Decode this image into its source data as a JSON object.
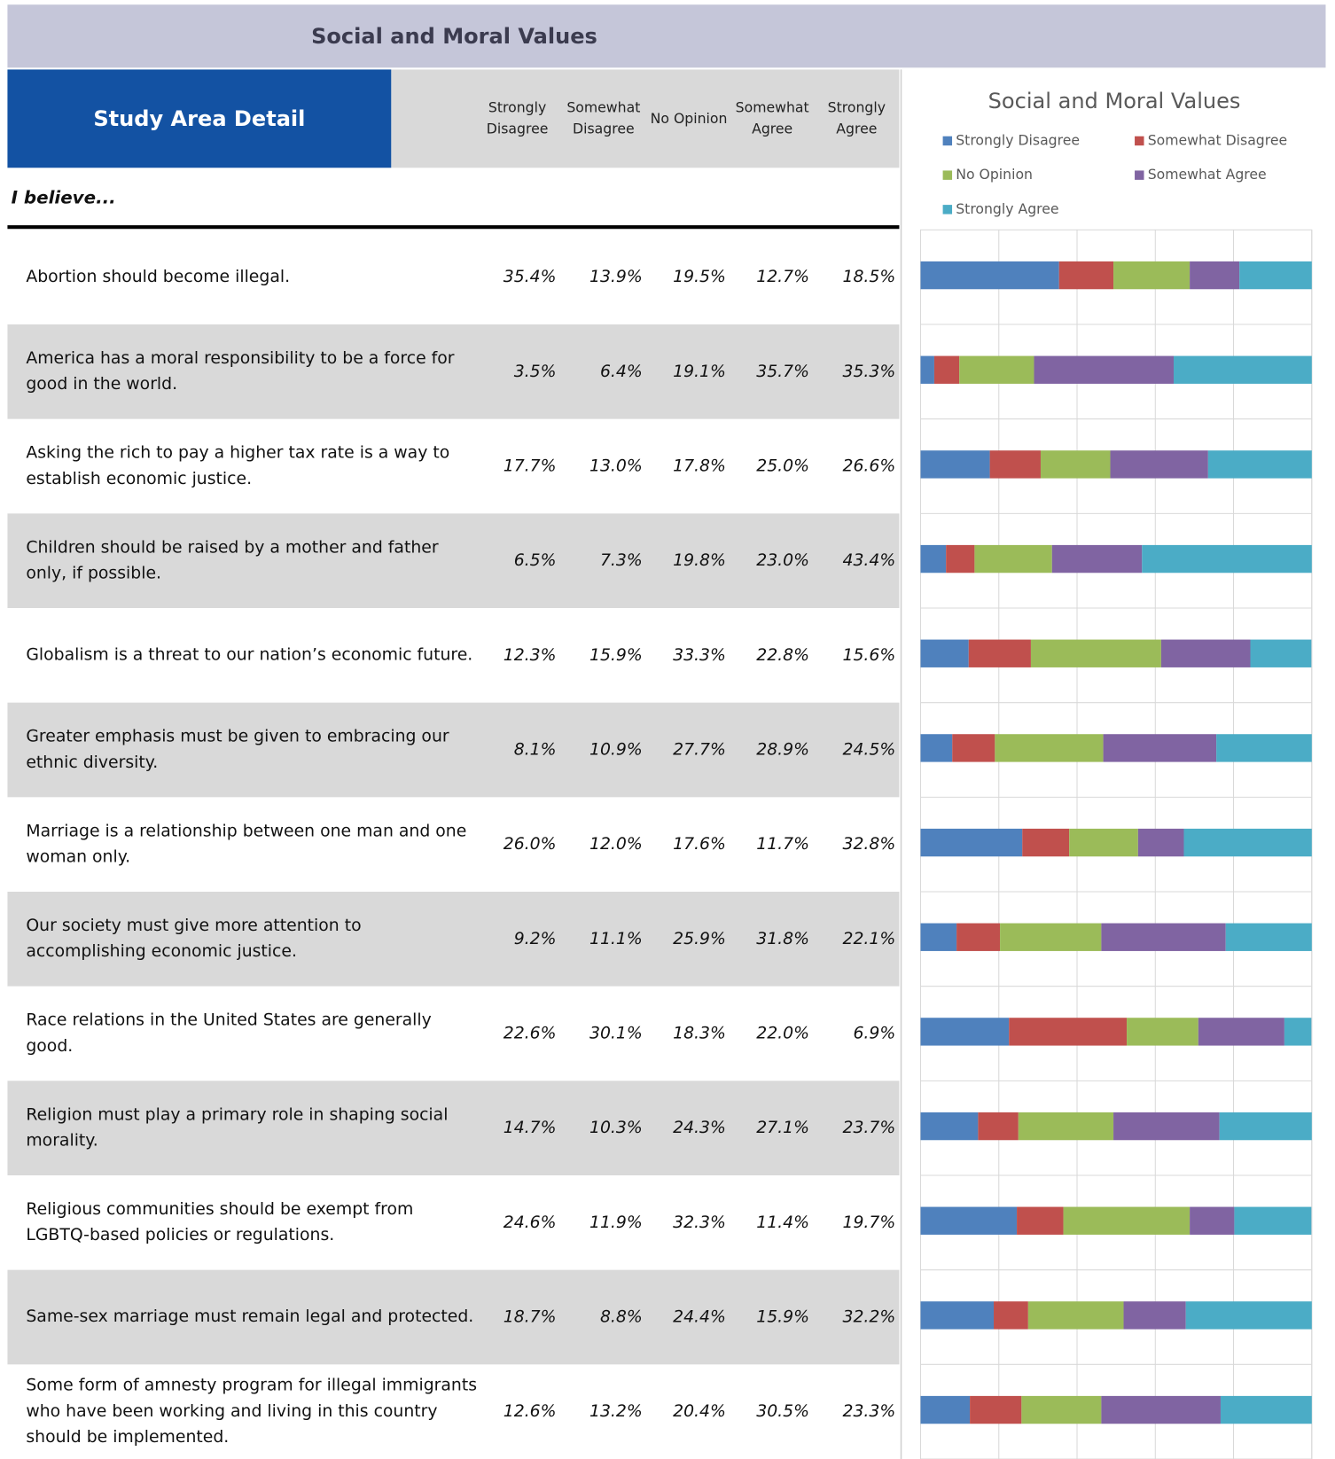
{
  "header": {
    "title": "Social and Moral Values"
  },
  "table": {
    "title": "Study Area Detail",
    "intro": "I believe...",
    "columns": [
      "Strongly Disagree",
      "Somewhat Disagree",
      "No Opinion",
      "Somewhat Agree",
      "Strongly Agree"
    ],
    "rows": [
      {
        "statement": "Abortion should become illegal.",
        "values": [
          "35.4%",
          "13.9%",
          "19.5%",
          "12.7%",
          "18.5%"
        ]
      },
      {
        "statement": "America has a moral responsibility to be a force for good in the world.",
        "values": [
          "3.5%",
          "6.4%",
          "19.1%",
          "35.7%",
          "35.3%"
        ]
      },
      {
        "statement": "Asking the rich to pay a higher tax rate is a way to establish economic justice.",
        "values": [
          "17.7%",
          "13.0%",
          "17.8%",
          "25.0%",
          "26.6%"
        ]
      },
      {
        "statement": "Children should be raised by a mother and father only, if possible.",
        "values": [
          "6.5%",
          "7.3%",
          "19.8%",
          "23.0%",
          "43.4%"
        ]
      },
      {
        "statement": "Globalism is a threat to our nation’s economic future.",
        "values": [
          "12.3%",
          "15.9%",
          "33.3%",
          "22.8%",
          "15.6%"
        ]
      },
      {
        "statement": "Greater emphasis must be given to embracing our ethnic diversity.",
        "values": [
          "8.1%",
          "10.9%",
          "27.7%",
          "28.9%",
          "24.5%"
        ]
      },
      {
        "statement": "Marriage is a relationship between one man and one woman only.",
        "values": [
          "26.0%",
          "12.0%",
          "17.6%",
          "11.7%",
          "32.8%"
        ]
      },
      {
        "statement": "Our society must give more attention to accomplishing economic justice.",
        "values": [
          "9.2%",
          "11.1%",
          "25.9%",
          "31.8%",
          "22.1%"
        ]
      },
      {
        "statement": "Race relations in the United States are generally good.",
        "values": [
          "22.6%",
          "30.1%",
          "18.3%",
          "22.0%",
          "6.9%"
        ]
      },
      {
        "statement": "Religion must play a primary role in shaping social morality.",
        "values": [
          "14.7%",
          "10.3%",
          "24.3%",
          "27.1%",
          "23.7%"
        ]
      },
      {
        "statement": "Religious communities should be exempt from LGBTQ-based policies or regulations.",
        "values": [
          "24.6%",
          "11.9%",
          "32.3%",
          "11.4%",
          "19.7%"
        ]
      },
      {
        "statement": "Same-sex marriage must remain legal and protected.",
        "values": [
          "18.7%",
          "8.8%",
          "24.4%",
          "15.9%",
          "32.2%"
        ]
      },
      {
        "statement": "Some form of amnesty program for illegal immigrants who have been working and living in this country should be implemented.",
        "values": [
          "12.6%",
          "13.2%",
          "20.4%",
          "30.5%",
          "23.3%"
        ]
      }
    ]
  },
  "chart_data": {
    "type": "stacked_bar",
    "title": "Social and Moral Values",
    "series": [
      {
        "name": "Strongly Disagree",
        "color": "#4f81bd",
        "values": [
          35.4,
          3.5,
          17.7,
          6.5,
          12.3,
          8.1,
          26.0,
          9.2,
          22.6,
          14.7,
          24.6,
          18.7,
          12.6
        ]
      },
      {
        "name": "Somewhat Disagree",
        "color": "#c0504d",
        "values": [
          13.9,
          6.4,
          13.0,
          7.3,
          15.9,
          10.9,
          12.0,
          11.1,
          30.1,
          10.3,
          11.9,
          8.8,
          13.2
        ]
      },
      {
        "name": "No Opinion",
        "color": "#9bbb59",
        "values": [
          19.5,
          19.1,
          17.8,
          19.8,
          33.3,
          27.7,
          17.6,
          25.9,
          18.3,
          24.3,
          32.3,
          24.4,
          20.4
        ]
      },
      {
        "name": "Somewhat Agree",
        "color": "#8064a2",
        "values": [
          12.7,
          35.7,
          25.0,
          23.0,
          22.8,
          28.9,
          11.7,
          31.8,
          22.0,
          27.1,
          11.4,
          15.9,
          30.5
        ]
      },
      {
        "name": "Strongly Agree",
        "color": "#4bacc6",
        "values": [
          18.5,
          35.3,
          26.6,
          43.4,
          15.6,
          24.5,
          32.8,
          22.1,
          6.9,
          23.7,
          19.7,
          32.2,
          23.3
        ]
      }
    ],
    "xlim": [
      0,
      100
    ],
    "xticks": [
      0,
      20,
      40,
      60,
      80,
      100
    ],
    "grid": true,
    "legend": "top"
  }
}
